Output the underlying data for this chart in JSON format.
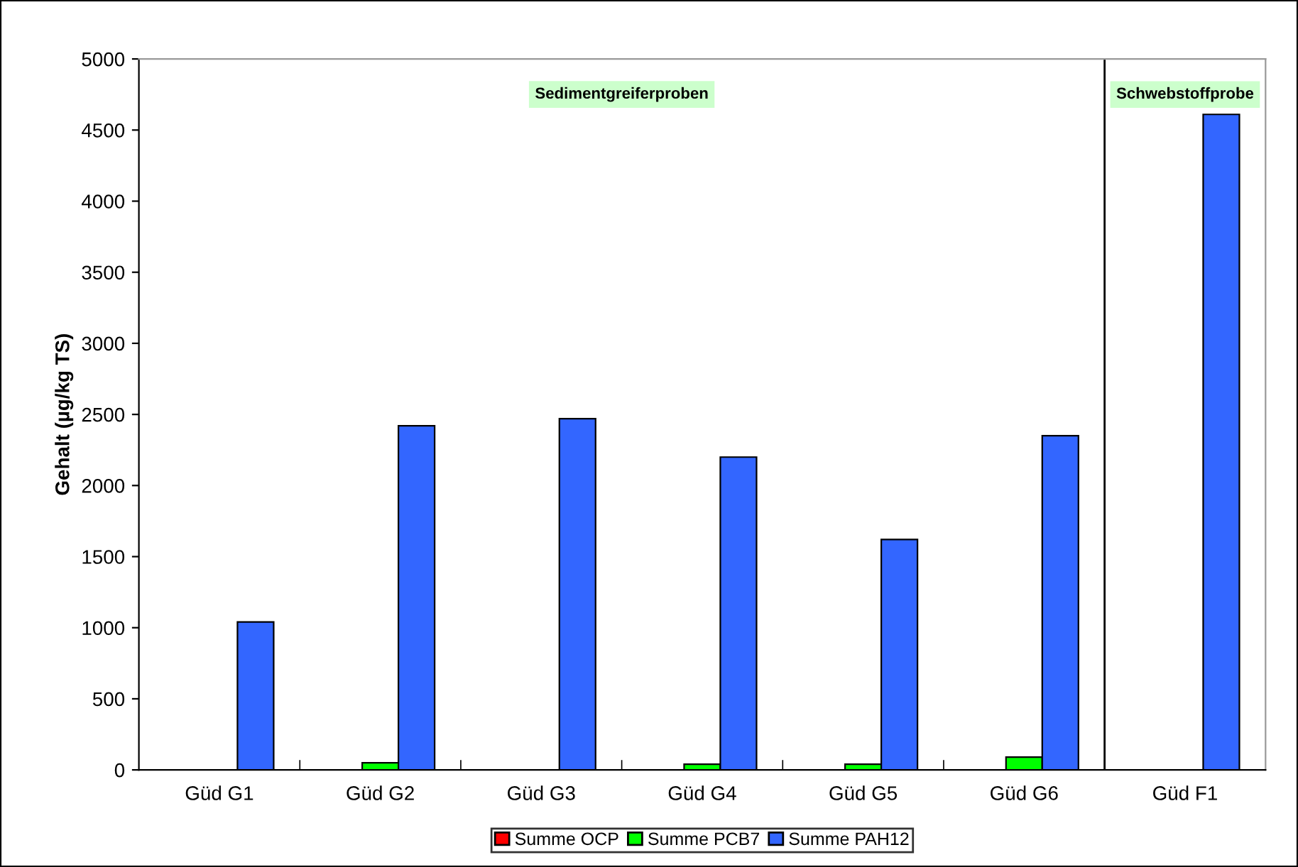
{
  "chart_data": {
    "type": "bar",
    "ylabel": "Gehalt (µg/kg TS)",
    "categories": [
      "Güd G1",
      "Güd G2",
      "Güd G3",
      "Güd G4",
      "Güd G5",
      "Güd G6",
      "Güd F1"
    ],
    "series": [
      {
        "name": "Summe OCP",
        "color": "#ff0000",
        "values": [
          null,
          null,
          null,
          null,
          null,
          null,
          null
        ]
      },
      {
        "name": "Summe PCB7",
        "color": "#00ff00",
        "values": [
          null,
          50,
          null,
          40,
          40,
          90,
          null
        ]
      },
      {
        "name": "Summe PAH12",
        "color": "#3366ff",
        "values": [
          1040,
          2420,
          2470,
          2200,
          1620,
          2350,
          4610
        ]
      }
    ],
    "ylim": [
      0,
      5000
    ],
    "yticks": [
      0,
      500,
      1000,
      1500,
      2000,
      2500,
      3000,
      3500,
      4000,
      4500,
      5000
    ],
    "grid": false,
    "legend": "bottom",
    "annotations": [
      "Sedimentgreiferproben",
      "Schwebstoffprobe"
    ]
  }
}
